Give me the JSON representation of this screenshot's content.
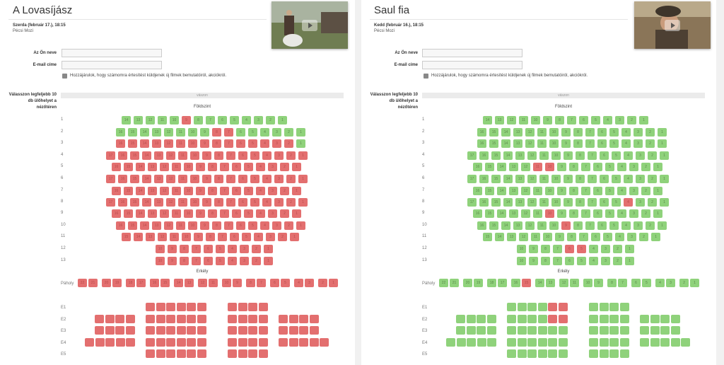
{
  "labels": {
    "name": "Az Ön neve",
    "email": "E-mail címe",
    "consent": "Hozzájárulok, hogy számomra értesítést küldjenek új filmek bemutatóiról, akciókról.",
    "choose": "Válasszon legfeljebb 10 db ülőhelyet a nézőtéren",
    "screen": "vászon",
    "ground": "Földszint",
    "balcony": "Erkély",
    "box": "Páholy"
  },
  "movies": [
    {
      "title": "A Lovasíjász",
      "date": "Szerda (február 17.), 18:15",
      "venue": "Pécsi Mozi",
      "name_value": "",
      "email_value": ""
    },
    {
      "title": "Saul fia",
      "date": "Kedd (február 16.), 18:15",
      "venue": "Pécsi Mozi",
      "name_value": "",
      "email_value": ""
    }
  ],
  "ground_rows": [
    "1",
    "2",
    "3",
    "4",
    "5",
    "6",
    "7",
    "8",
    "9",
    "10",
    "11",
    "12",
    "13"
  ],
  "balcony_rows": [
    "E1",
    "E2",
    "E3",
    "E4",
    "E5"
  ],
  "colors": {
    "free": "#8fd27b",
    "taken": "#e36f6f"
  }
}
